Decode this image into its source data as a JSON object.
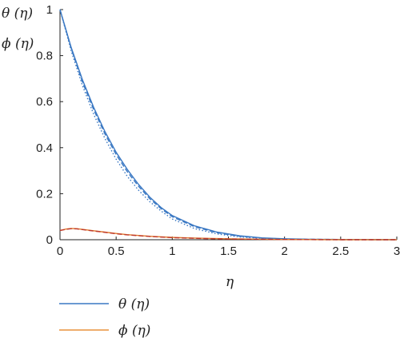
{
  "chart_data": {
    "type": "line",
    "xlabel": "η",
    "ylabels": [
      "θ (η)",
      "ϕ (η)"
    ],
    "xlim": [
      0,
      3
    ],
    "ylim": [
      0,
      1
    ],
    "x_ticks": [
      "0",
      "0.5",
      "1",
      "1.5",
      "2",
      "2.5",
      "3"
    ],
    "y_ticks": [
      "0",
      "0.2",
      "0.4",
      "0.6",
      "0.8",
      "1"
    ],
    "grid": false,
    "legend_position": "below-left",
    "series": [
      {
        "name": "θ (η)",
        "color": "#3a78c3",
        "style": "solid",
        "x": [
          0,
          0.1,
          0.2,
          0.3,
          0.4,
          0.5,
          0.6,
          0.7,
          0.8,
          0.9,
          1.0,
          1.2,
          1.4,
          1.6,
          1.8,
          2.0,
          2.2,
          2.5,
          3.0
        ],
        "y": [
          1.0,
          0.835,
          0.695,
          0.575,
          0.47,
          0.38,
          0.305,
          0.24,
          0.185,
          0.14,
          0.105,
          0.06,
          0.033,
          0.017,
          0.008,
          0.004,
          0.002,
          0.001,
          0.0
        ]
      },
      {
        "name": "",
        "color": "#3a78c3",
        "style": "dashed",
        "x": [
          0,
          0.1,
          0.2,
          0.3,
          0.4,
          0.5,
          0.6,
          0.7,
          0.8,
          0.9,
          1.0,
          1.2,
          1.4,
          1.6,
          1.8,
          2.0,
          2.2,
          2.5,
          3.0
        ],
        "y": [
          1.0,
          0.83,
          0.685,
          0.565,
          0.46,
          0.37,
          0.295,
          0.232,
          0.178,
          0.135,
          0.1,
          0.056,
          0.03,
          0.015,
          0.007,
          0.003,
          0.002,
          0.001,
          0.0
        ]
      },
      {
        "name": "",
        "color": "#3a78c3",
        "style": "dotted",
        "x": [
          0,
          0.1,
          0.2,
          0.3,
          0.4,
          0.5,
          0.6,
          0.7,
          0.8,
          0.9,
          1.0,
          1.2,
          1.4,
          1.6,
          1.8,
          2.0,
          2.2,
          2.5,
          3.0
        ],
        "y": [
          1.0,
          0.82,
          0.67,
          0.545,
          0.44,
          0.35,
          0.275,
          0.215,
          0.165,
          0.125,
          0.09,
          0.048,
          0.025,
          0.012,
          0.006,
          0.003,
          0.001,
          0.0,
          0.0
        ]
      },
      {
        "name": "ϕ (η)",
        "color": "#e07b2e",
        "style": "solid",
        "x": [
          0,
          0.05,
          0.1,
          0.15,
          0.2,
          0.3,
          0.4,
          0.5,
          0.6,
          0.8,
          1.0,
          1.2,
          1.5,
          1.8,
          2.0,
          2.5,
          3.0
        ],
        "y": [
          0.04,
          0.046,
          0.049,
          0.048,
          0.045,
          0.039,
          0.033,
          0.027,
          0.022,
          0.015,
          0.01,
          0.007,
          0.004,
          0.002,
          0.001,
          0.0,
          0.0
        ]
      },
      {
        "name": "",
        "color": "#c0392b",
        "style": "dashed",
        "x": [
          0,
          0.05,
          0.1,
          0.15,
          0.2,
          0.3,
          0.4,
          0.5,
          0.6,
          0.8,
          1.0,
          1.2,
          1.5,
          1.8,
          2.0,
          2.5,
          3.0
        ],
        "y": [
          0.04,
          0.045,
          0.048,
          0.047,
          0.044,
          0.038,
          0.032,
          0.026,
          0.021,
          0.014,
          0.009,
          0.006,
          0.003,
          0.002,
          0.001,
          0.0,
          0.0
        ]
      }
    ],
    "legend": [
      {
        "label": "θ (η)",
        "color": "#3a78c3"
      },
      {
        "label": "ϕ (η)",
        "color": "#e8923b"
      }
    ]
  }
}
